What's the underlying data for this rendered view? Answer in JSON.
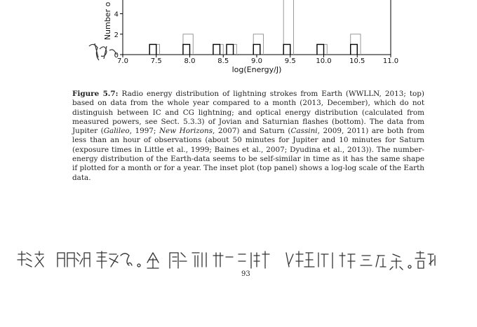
{
  "chart_data": {
    "type": "bar",
    "xlabel": "log(Energy/J)",
    "ylabel": "Number o",
    "xlim": [
      7.0,
      11.0
    ],
    "ylim_visible": [
      0,
      5.2
    ],
    "x_ticks": [
      "7.0",
      "7.5",
      "8.0",
      "8.5",
      "9.0",
      "9.5",
      "10.0",
      "10.5",
      "11.0"
    ],
    "y_ticks": [
      "0",
      "2",
      "4"
    ],
    "bin_width": 0.05,
    "bin_starts": [
      7.4,
      7.9,
      8.35,
      8.55,
      8.95,
      9.4,
      9.9,
      10.4
    ],
    "bins_grey": [
      1,
      2,
      1,
      1,
      2,
      5.5,
      1,
      2
    ],
    "bins_black": [
      1,
      1,
      1,
      1,
      1,
      1,
      1,
      1
    ]
  },
  "caption": {
    "label": "Figure 5.7:",
    "p1": "Radio energy distribution of lightning strokes from Earth (WWLLN, 2013; top) based on data from the whole year compared to a month (2013, December), which do not distinguish between IC and CG lightning; and optical energy distribution (calculated from measured powers, see Sect. 5.3.3) of Jovian and Saturnian flashes (bottom). The data from Jupiter (",
    "galileo": "Galileo",
    "p2": ", 1997; ",
    "newhorizons": "New Horizons",
    "p3": ", 2007) and Saturn (",
    "cassini": "Cassini",
    "p4": ", 2009, 2011) are both from less than an hour of observations (about 50 minutes for Jupiter and 10 minutes for Saturn (exposure times in Little et al., 1999; Baines et al., 2007; Dyudina et al., 2013)). The number-energy distribution of the Earth-data seems to be self-similar in time as it has the same shape if plotted for a month or for a year. The inset plot (top panel) shows a log-log scale of the Earth data."
  },
  "page_number": "93"
}
